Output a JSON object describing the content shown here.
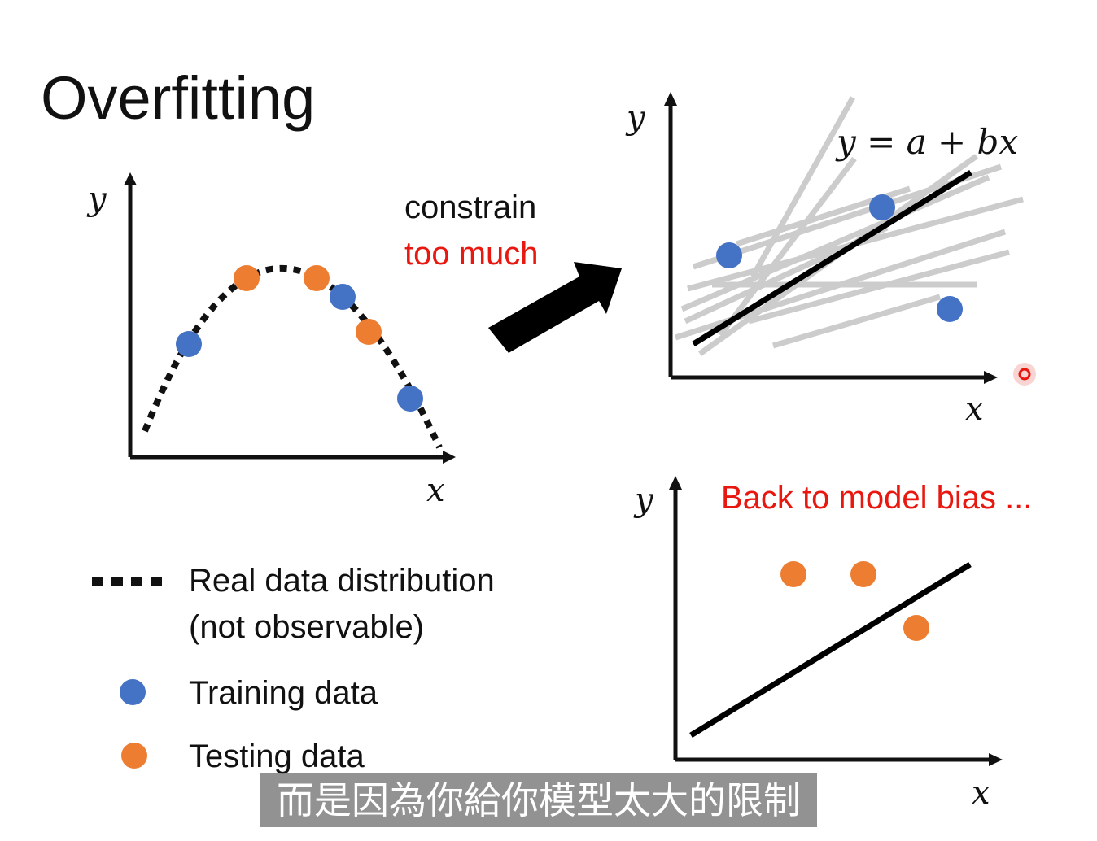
{
  "title": "Overfitting",
  "arrow_text": {
    "line1": "constrain",
    "line2": "too much"
  },
  "equation": "y = a + bx",
  "bias_note": "Back to model bias ...",
  "axes": {
    "x": "x",
    "y": "y"
  },
  "legend": {
    "real": {
      "line1": "Real data distribution",
      "line2": "(not observable)"
    },
    "training": "Training data",
    "testing": "Testing data"
  },
  "caption": "而是因為你給你模型太大的限制",
  "colors": {
    "training": "#4472c4",
    "testing": "#ed7d31",
    "highlight": "#e8170f",
    "faint_lines": "#cccccc"
  }
}
